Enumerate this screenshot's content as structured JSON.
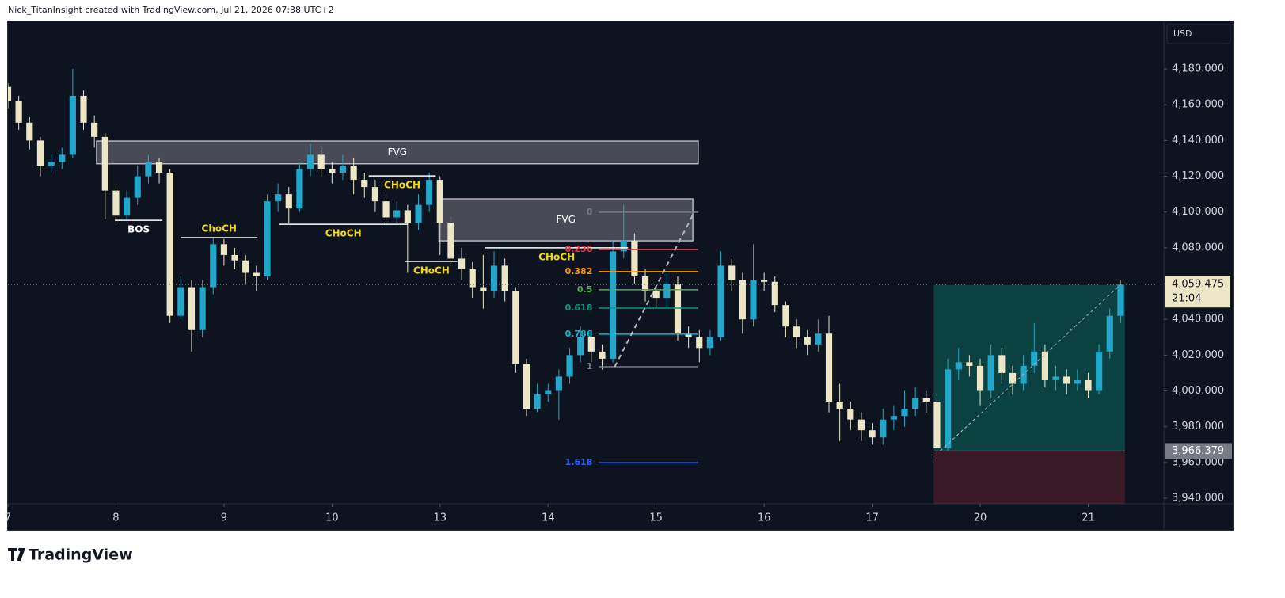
{
  "header": "Nick_TitanInsight created with TradingView.com, Jul 21, 2026 07:38 UTC+2",
  "logo": "TradingView",
  "chart_data": {
    "type": "candlestick",
    "currency": "USD",
    "up_color": "#22a6c9",
    "down_color": "#ece6c7",
    "xlim": [
      0,
      10.7
    ],
    "xticks": [
      {
        "value": 0,
        "label": "7"
      },
      {
        "value": 1,
        "label": "8"
      },
      {
        "value": 2,
        "label": "9"
      },
      {
        "value": 3,
        "label": "10"
      },
      {
        "value": 4,
        "label": "13"
      },
      {
        "value": 5,
        "label": "14"
      },
      {
        "value": 6,
        "label": "15"
      },
      {
        "value": 7,
        "label": "16"
      },
      {
        "value": 8,
        "label": "17"
      },
      {
        "value": 9,
        "label": "20"
      },
      {
        "value": 10,
        "label": "21"
      }
    ],
    "ylim": [
      3936.9,
      4206.6
    ],
    "yticks": [
      {
        "value": 3940,
        "label": "3,940.000"
      },
      {
        "value": 3960,
        "label": "3,960.000"
      },
      {
        "value": 3980,
        "label": "3,980.000"
      },
      {
        "value": 4000,
        "label": "4,000.000"
      },
      {
        "value": 4020,
        "label": "4,020.000"
      },
      {
        "value": 4040,
        "label": "4,040.000"
      },
      {
        "value": 4060,
        "label": "4,060.000"
      },
      {
        "value": 4080,
        "label": "4,080.000"
      },
      {
        "value": 4100,
        "label": "4,100.000"
      },
      {
        "value": 4120,
        "label": "4,120.000"
      },
      {
        "value": 4140,
        "label": "4,140.000"
      },
      {
        "value": 4160,
        "label": "4,160.000"
      },
      {
        "value": 4180,
        "label": "4,180.000"
      }
    ],
    "x": [
      0,
      0.1,
      0.2,
      0.3,
      0.4,
      0.5,
      0.6,
      0.7,
      0.8,
      0.9,
      1,
      1.1,
      1.2,
      1.3,
      1.4,
      1.5,
      1.6,
      1.7,
      1.8,
      1.9,
      2,
      2.1,
      2.2,
      2.3,
      2.4,
      2.5,
      2.6,
      2.7,
      2.8,
      2.9,
      3,
      3.1,
      3.2,
      3.3,
      3.4,
      3.5,
      3.6,
      3.7,
      3.8,
      3.9,
      4,
      4.1,
      4.2,
      4.3,
      4.4,
      4.5,
      4.6,
      4.7,
      4.8,
      4.9,
      5,
      5.1,
      5.2,
      5.3,
      5.4,
      5.5,
      5.6,
      5.7,
      5.8,
      5.9,
      6,
      6.1,
      6.2,
      6.3,
      6.4,
      6.5,
      6.6,
      6.7,
      6.8,
      6.9,
      7,
      7.1,
      7.2,
      7.3,
      7.4,
      7.5,
      7.6,
      7.7,
      7.8,
      7.9,
      8,
      8.1,
      8.2,
      8.3,
      8.4,
      8.5,
      8.6,
      8.7,
      8.8,
      8.9,
      9,
      9.1,
      9.2,
      9.3,
      9.4,
      9.5,
      9.6,
      9.7,
      9.8,
      9.9,
      10,
      10.1,
      10.2,
      10.3
    ],
    "ohlc": [
      [
        4170,
        4172,
        4158,
        4162
      ],
      [
        4162,
        4165,
        4146,
        4150
      ],
      [
        4150,
        4153,
        4135,
        4140
      ],
      [
        4140,
        4142,
        4120,
        4126
      ],
      [
        4126,
        4132,
        4122,
        4128
      ],
      [
        4128,
        4136,
        4124,
        4132
      ],
      [
        4132,
        4180,
        4130,
        4165
      ],
      [
        4165,
        4168,
        4146,
        4150
      ],
      [
        4150,
        4154,
        4136,
        4142
      ],
      [
        4142,
        4144,
        4096,
        4112
      ],
      [
        4112,
        4115,
        4094,
        4098
      ],
      [
        4098,
        4112,
        4096,
        4108
      ],
      [
        4108,
        4126,
        4104,
        4120
      ],
      [
        4120,
        4132,
        4116,
        4128
      ],
      [
        4128,
        4130,
        4116,
        4122
      ],
      [
        4122,
        4124,
        4038,
        4042
      ],
      [
        4042,
        4064,
        4040,
        4058
      ],
      [
        4058,
        4062,
        4022,
        4034
      ],
      [
        4034,
        4062,
        4030,
        4058
      ],
      [
        4058,
        4086,
        4054,
        4082
      ],
      [
        4082,
        4085,
        4070,
        4076
      ],
      [
        4076,
        4080,
        4068,
        4073
      ],
      [
        4073,
        4076,
        4060,
        4066
      ],
      [
        4066,
        4070,
        4056,
        4064
      ],
      [
        4064,
        4110,
        4062,
        4106
      ],
      [
        4106,
        4116,
        4100,
        4110
      ],
      [
        4110,
        4114,
        4094,
        4102
      ],
      [
        4102,
        4128,
        4100,
        4124
      ],
      [
        4124,
        4138,
        4120,
        4132
      ],
      [
        4132,
        4136,
        4120,
        4124
      ],
      [
        4124,
        4128,
        4116,
        4122
      ],
      [
        4122,
        4132,
        4118,
        4126
      ],
      [
        4126,
        4130,
        4110,
        4118
      ],
      [
        4118,
        4122,
        4108,
        4114
      ],
      [
        4114,
        4118,
        4100,
        4106
      ],
      [
        4106,
        4110,
        4092,
        4097
      ],
      [
        4097,
        4106,
        4094,
        4101
      ],
      [
        4101,
        4104,
        4066,
        4094
      ],
      [
        4094,
        4110,
        4090,
        4104
      ],
      [
        4104,
        4122,
        4100,
        4118
      ],
      [
        4118,
        4120,
        4076,
        4094
      ],
      [
        4094,
        4098,
        4070,
        4074
      ],
      [
        4074,
        4080,
        4062,
        4068
      ],
      [
        4068,
        4072,
        4052,
        4058
      ],
      [
        4058,
        4076,
        4046,
        4056
      ],
      [
        4056,
        4078,
        4052,
        4070
      ],
      [
        4070,
        4074,
        4050,
        4056
      ],
      [
        4056,
        4058,
        4010,
        4015
      ],
      [
        4015,
        4018,
        3986,
        3990
      ],
      [
        3990,
        4004,
        3988,
        3998
      ],
      [
        3998,
        4004,
        3994,
        4000
      ],
      [
        4000,
        4012,
        3984,
        4008
      ],
      [
        4008,
        4024,
        4004,
        4020
      ],
      [
        4020,
        4036,
        4016,
        4030
      ],
      [
        4030,
        4034,
        4016,
        4022
      ],
      [
        4022,
        4026,
        4012,
        4018
      ],
      [
        4018,
        4084,
        4016,
        4078
      ],
      [
        4078,
        4104,
        4074,
        4084
      ],
      [
        4084,
        4088,
        4060,
        4064
      ],
      [
        4064,
        4068,
        4050,
        4056
      ],
      [
        4056,
        4060,
        4046,
        4052
      ],
      [
        4052,
        4066,
        4046,
        4060
      ],
      [
        4060,
        4064,
        4028,
        4032
      ],
      [
        4032,
        4036,
        4024,
        4030
      ],
      [
        4030,
        4034,
        4016,
        4024
      ],
      [
        4024,
        4034,
        4020,
        4030
      ],
      [
        4030,
        4078,
        4028,
        4070
      ],
      [
        4070,
        4074,
        4056,
        4062
      ],
      [
        4062,
        4066,
        4032,
        4040
      ],
      [
        4040,
        4082,
        4036,
        4062
      ],
      [
        4062,
        4066,
        4056,
        4061
      ],
      [
        4061,
        4064,
        4044,
        4048
      ],
      [
        4048,
        4050,
        4030,
        4036
      ],
      [
        4036,
        4040,
        4024,
        4030
      ],
      [
        4030,
        4034,
        4020,
        4026
      ],
      [
        4026,
        4040,
        4022,
        4032
      ],
      [
        4032,
        4042,
        3988,
        3994
      ],
      [
        3994,
        4004,
        3972,
        3990
      ],
      [
        3990,
        3994,
        3978,
        3984
      ],
      [
        3984,
        3988,
        3972,
        3978
      ],
      [
        3978,
        3982,
        3970,
        3974
      ],
      [
        3974,
        3990,
        3970,
        3984
      ],
      [
        3984,
        3992,
        3978,
        3986
      ],
      [
        3986,
        4000,
        3980,
        3990
      ],
      [
        3990,
        4002,
        3986,
        3996
      ],
      [
        3996,
        4000,
        3988,
        3994
      ],
      [
        3994,
        3998,
        3962,
        3968
      ],
      [
        3968,
        4018,
        3966,
        4012
      ],
      [
        4012,
        4024,
        4006,
        4016
      ],
      [
        4016,
        4020,
        4008,
        4014
      ],
      [
        4014,
        4018,
        3992,
        4000
      ],
      [
        4000,
        4026,
        3996,
        4020
      ],
      [
        4020,
        4024,
        4004,
        4010
      ],
      [
        4010,
        4014,
        3998,
        4004
      ],
      [
        4004,
        4020,
        4000,
        4014
      ],
      [
        4014,
        4038,
        4010,
        4022
      ],
      [
        4022,
        4026,
        4002,
        4006
      ],
      [
        4006,
        4014,
        4000,
        4008
      ],
      [
        4008,
        4012,
        3998,
        4004
      ],
      [
        4004,
        4012,
        4000,
        4006
      ],
      [
        4006,
        4010,
        3996,
        4000
      ],
      [
        4000,
        4026,
        3998,
        4022
      ],
      [
        4022,
        4046,
        4018,
        4042
      ],
      [
        4042,
        4062,
        4038,
        4059.475
      ]
    ],
    "last_price": {
      "value": 4059.475,
      "label": "4,059.475",
      "countdown": "21:04"
    },
    "zones": [
      {
        "text": "FVG",
        "x": [
          0.82,
          6.39
        ],
        "y": [
          4127,
          4139.7
        ]
      },
      {
        "text": "FVG",
        "x": [
          3.99,
          6.34
        ],
        "y": [
          4083.9,
          4107.4
        ]
      }
    ],
    "structures": [
      {
        "text": "BOS",
        "x": [
          0.99,
          1.43
        ],
        "price": 4095.4,
        "color": "#ffffff",
        "label_side": "below"
      },
      {
        "text": "ChoCH",
        "x": [
          1.6,
          2.31
        ],
        "price": 4085.7,
        "color": "#f5d90a",
        "label_side": "above"
      },
      {
        "text": "CHoCH",
        "x": [
          2.51,
          3.7
        ],
        "price": 4093.2,
        "color": "#f5d90a",
        "label_side": "below"
      },
      {
        "text": "CHoCH",
        "x": [
          3.34,
          3.96
        ],
        "price": 4120.2,
        "color": "#f5d90a",
        "label_side": "below"
      },
      {
        "text": "CHoCH",
        "x": [
          3.68,
          4.16
        ],
        "price": 4072.4,
        "color": "#f5d90a",
        "label_side": "below"
      },
      {
        "text": "CHoCH",
        "x": [
          4.42,
          5.74
        ],
        "price": 4080,
        "color": "#f5d90a",
        "label_side": "below"
      }
    ],
    "fib": {
      "x": [
        5.47,
        6.39
      ],
      "levels": [
        {
          "ratio": 0,
          "price": 4099.9,
          "color": "#787b86"
        },
        {
          "ratio": 0.236,
          "price": 4079,
          "color": "#f23645"
        },
        {
          "ratio": 0.382,
          "price": 4066.7,
          "color": "#ff9800"
        },
        {
          "ratio": 0.5,
          "price": 4056.5,
          "color": "#4caf50"
        },
        {
          "ratio": 0.618,
          "price": 4046.3,
          "color": "#089981"
        },
        {
          "ratio": 0.786,
          "price": 4031.7,
          "color": "#00bcd4"
        },
        {
          "ratio": 1,
          "price": 4013.5,
          "color": "#787b86"
        },
        {
          "ratio": 1.618,
          "price": 3959.9,
          "color": "#2962ff"
        }
      ]
    },
    "position": {
      "x": [
        8.57,
        10.34
      ],
      "entry": 3966.379,
      "entry_label": "3,966.379",
      "target": 4059.3,
      "stop": 3937
    }
  }
}
